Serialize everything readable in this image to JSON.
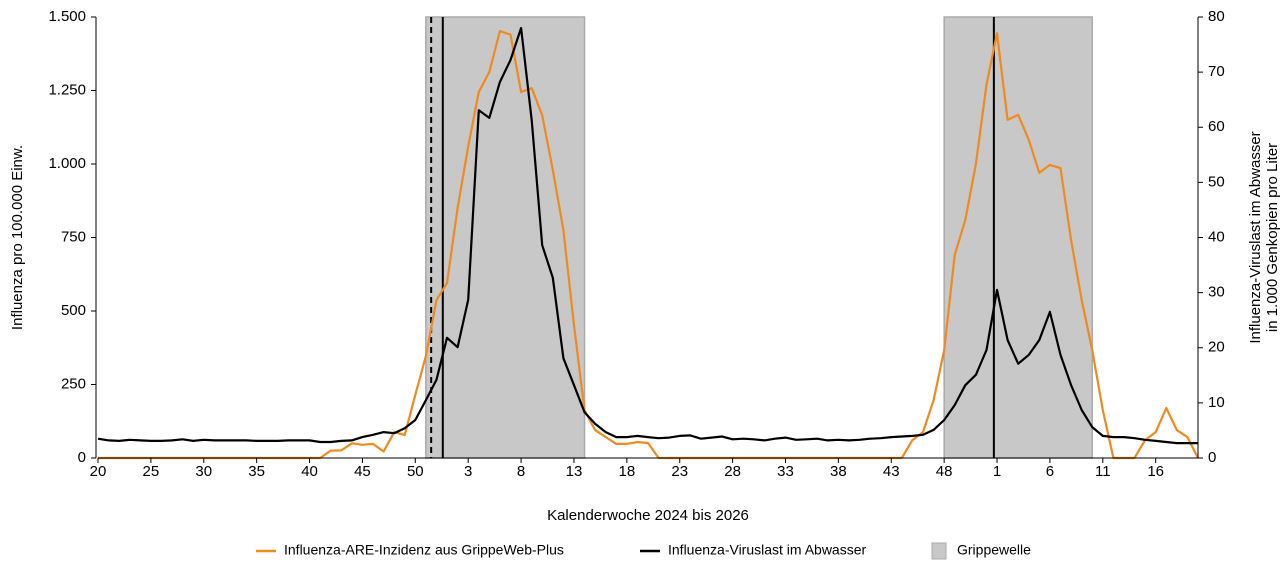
{
  "chart_data": {
    "type": "line",
    "x_label": "Kalenderwoche 2024 bis 2026",
    "y_label": "Influenza pro 100.000 Einw.",
    "y2_label": [
      "Influenza-Viruslast im Abwasser",
      "in 1.000 Genkopien pro Liter"
    ],
    "categories": [
      "20",
      null,
      null,
      null,
      null,
      "25",
      null,
      null,
      null,
      null,
      "30",
      null,
      null,
      null,
      null,
      "35",
      null,
      null,
      null,
      null,
      "40",
      null,
      null,
      null,
      null,
      "45",
      null,
      null,
      null,
      null,
      "50",
      null,
      null,
      null,
      null,
      "3",
      null,
      null,
      null,
      null,
      "8",
      null,
      null,
      null,
      null,
      "13",
      null,
      null,
      null,
      null,
      "18",
      null,
      null,
      null,
      null,
      "23",
      null,
      null,
      null,
      null,
      "28",
      null,
      null,
      null,
      null,
      "33",
      null,
      null,
      null,
      null,
      "38",
      null,
      null,
      null,
      null,
      "43",
      null,
      null,
      null,
      null,
      "48",
      null,
      null,
      null,
      null,
      "1",
      null,
      null,
      null,
      null,
      "6",
      null,
      null,
      null,
      null,
      "11",
      null,
      null,
      null,
      null,
      "16",
      null,
      null,
      null,
      null
    ],
    "ylim": [
      0,
      1500
    ],
    "yticks": [
      0,
      250,
      500,
      750,
      {
        "value": 1000,
        "label": "1.000"
      },
      {
        "value": 1250,
        "label": "1.250"
      },
      {
        "value": 1500,
        "label": "1.500"
      }
    ],
    "y2lim": [
      0,
      80
    ],
    "y2ticks": [
      0,
      10,
      20,
      30,
      40,
      50,
      60,
      70,
      80
    ],
    "series": [
      {
        "name": "Influenza-ARE-Inzidenz aus GrippeWeb-Plus",
        "color": "#f08a1e",
        "axis": "y",
        "values": [
          0,
          0,
          0,
          0,
          0,
          0,
          0,
          0,
          0,
          0,
          0,
          0,
          0,
          0,
          0,
          0,
          0,
          0,
          0,
          0,
          0,
          0,
          25,
          26,
          50,
          45,
          48,
          22,
          88,
          78,
          215,
          347,
          537,
          595,
          850,
          1060,
          1245,
          1313,
          1452,
          1440,
          1245,
          1258,
          1166,
          980,
          775,
          452,
          163,
          95,
          71,
          48,
          48,
          54,
          51,
          0,
          0,
          0,
          0,
          0,
          0,
          0,
          0,
          0,
          0,
          0,
          0,
          0,
          0,
          0,
          0,
          0,
          0,
          0,
          0,
          0,
          0,
          0,
          0,
          61,
          88,
          197,
          367,
          690,
          810,
          1000,
          1270,
          1445,
          1150,
          1167,
          1082,
          970,
          997,
          986,
          741,
          537,
          367,
          163,
          0,
          0,
          0,
          61,
          88,
          170,
          95,
          71,
          0
        ]
      },
      {
        "name": "Influenza-Viruslast im Abwasser",
        "color": "#000000",
        "axis": "y2",
        "values": [
          3.5,
          3.2,
          3.1,
          3.3,
          3.2,
          3.1,
          3.1,
          3.2,
          3.4,
          3.1,
          3.3,
          3.2,
          3.2,
          3.2,
          3.2,
          3.1,
          3.1,
          3.1,
          3.2,
          3.2,
          3.2,
          2.9,
          2.9,
          3.1,
          3.2,
          3.8,
          4.2,
          4.7,
          4.5,
          5.4,
          6.9,
          10.5,
          14.2,
          21.8,
          20.1,
          28.7,
          63.1,
          61.7,
          68.2,
          72.2,
          78.0,
          61.3,
          38.6,
          32.7,
          18.1,
          13.2,
          8.3,
          6.2,
          4.7,
          3.8,
          3.8,
          4.0,
          3.8,
          3.6,
          3.7,
          4.0,
          4.1,
          3.5,
          3.7,
          3.9,
          3.4,
          3.5,
          3.4,
          3.2,
          3.5,
          3.7,
          3.3,
          3.4,
          3.5,
          3.2,
          3.3,
          3.2,
          3.3,
          3.5,
          3.6,
          3.8,
          3.9,
          4.0,
          4.2,
          5.1,
          6.9,
          9.6,
          13.2,
          15.1,
          19.6,
          30.5,
          21.4,
          17.1,
          18.7,
          21.4,
          26.5,
          18.7,
          13.2,
          8.7,
          5.6,
          4.0,
          3.8,
          3.8,
          3.6,
          3.3,
          3.1,
          2.9,
          2.7,
          2.7,
          2.7
        ]
      }
    ],
    "bands": {
      "name": "Grippewelle",
      "color": "#c8c8c8",
      "ranges": [
        [
          31,
          46
        ],
        [
          80,
          94
        ]
      ]
    },
    "reference_lines": [
      {
        "x": 31.5,
        "dashed": true
      },
      {
        "x": 32.6,
        "dashed": false
      },
      {
        "x": 84.7,
        "dashed": false
      }
    ]
  }
}
